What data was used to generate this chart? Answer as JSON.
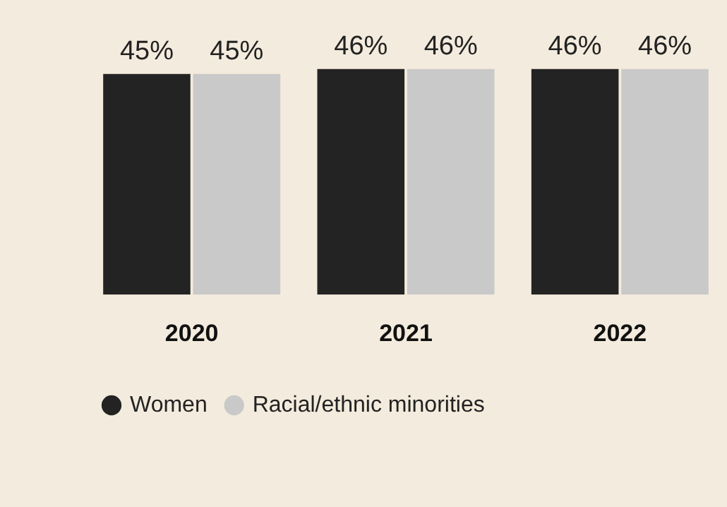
{
  "chart_data": {
    "type": "bar",
    "categories": [
      "2020",
      "2021",
      "2022"
    ],
    "series": [
      {
        "name": "Women",
        "color": "#232323",
        "values": [
          45,
          46,
          46
        ],
        "value_labels": [
          "45%",
          "46%",
          "46%"
        ]
      },
      {
        "name": "Racial/ethnic minorities",
        "color": "#c9c9c9",
        "values": [
          45,
          46,
          46
        ],
        "value_labels": [
          "45%",
          "46%",
          "46%"
        ]
      }
    ],
    "legend": "bottom left",
    "grid": false
  }
}
